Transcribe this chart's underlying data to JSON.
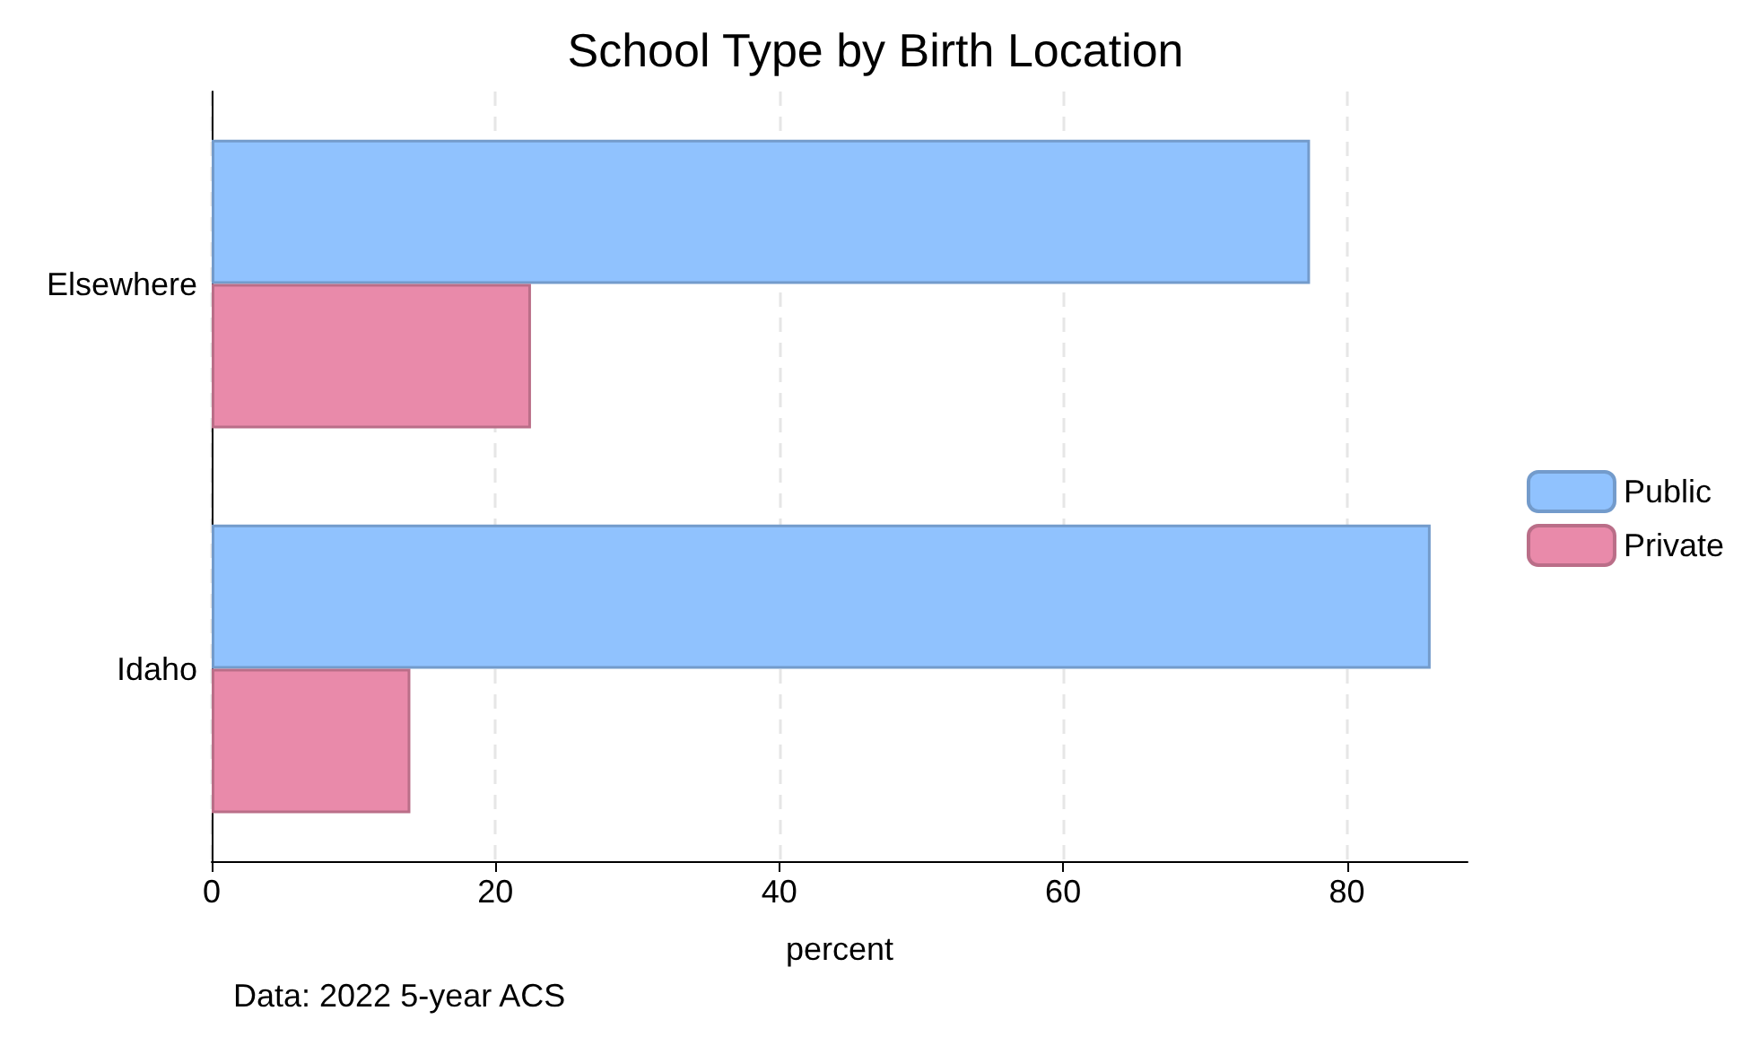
{
  "chart_data": {
    "type": "bar",
    "orientation": "horizontal",
    "title": "School Type by Birth Location",
    "xlabel": "percent",
    "categories": [
      "Elsewhere",
      "Idaho"
    ],
    "series": [
      {
        "name": "Public",
        "color": "#90c2fe",
        "values": [
          77.4,
          85.9
        ]
      },
      {
        "name": "Private",
        "color": "#e98aaa",
        "values": [
          22.5,
          14.0
        ]
      }
    ],
    "xlim": [
      0,
      88.5
    ],
    "xticks": [
      0,
      20,
      40,
      60,
      80
    ],
    "grid": "x",
    "legend": "right",
    "annotations": [
      "Data: 2022 5-year ACS"
    ]
  }
}
